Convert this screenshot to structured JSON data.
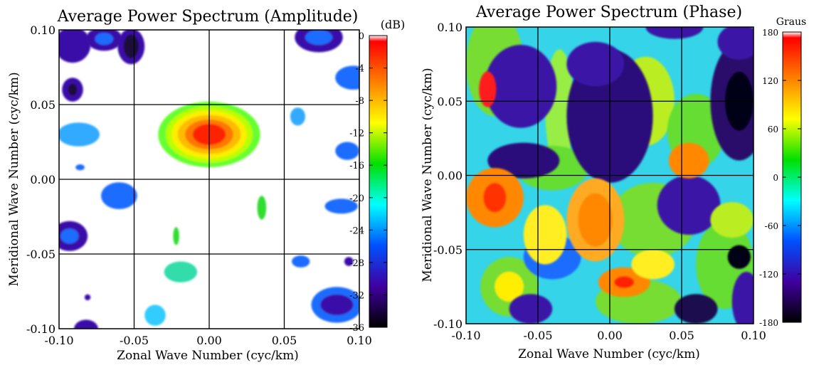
{
  "chart_data": [
    {
      "type": "heatmap",
      "title": "Average Power Spectrum (Amplitude)",
      "xlabel": "Zonal Wave Number (cyc/km)",
      "ylabel": "Meridional Wave Number (cyc/km)",
      "xlim": [
        -0.1,
        0.1
      ],
      "ylim": [
        -0.1,
        0.1
      ],
      "x_ticks": [
        "-0.10",
        "-0.05",
        "0.00",
        "0.05",
        "0.10"
      ],
      "y_ticks": [
        "-0.10",
        "-0.05",
        "0.00",
        "0.05",
        "0.10"
      ],
      "grid": true,
      "colorbar": {
        "label": "(dB)",
        "range": [
          -36,
          0
        ],
        "ticks": [
          "0",
          "-4",
          "-8",
          "-12",
          "-16",
          "-20",
          "-24",
          "-28",
          "-32",
          "-36"
        ],
        "colormap": "rainbow",
        "colors": [
          "#ffffff",
          "#ff0000",
          "#ff8000",
          "#ffff00",
          "#00e000",
          "#00ffff",
          "#0050ff",
          "#4000a0",
          "#000000"
        ]
      },
      "blobs": [
        {
          "x": 0.0,
          "y": 0.03,
          "peak_db": -2,
          "layers": [
            [
              0.034,
              0.022,
              "#66ff33"
            ],
            [
              0.029,
              0.019,
              "#bbff00"
            ],
            [
              0.025,
              0.016,
              "#ffee00"
            ],
            [
              0.021,
              0.013,
              "#ffbb00"
            ],
            [
              0.016,
              0.01,
              "#ff7700"
            ],
            [
              0.011,
              0.007,
              "#ff2200"
            ]
          ]
        },
        {
          "x": -0.091,
          "y": 0.09,
          "peak_db": -30,
          "layers": [
            [
              0.012,
              0.012,
              "#3a10a8"
            ]
          ]
        },
        {
          "x": -0.07,
          "y": 0.094,
          "peak_db": -30,
          "layers": [
            [
              0.012,
              0.008,
              "#3a10a8"
            ],
            [
              0.006,
              0.004,
              "#1e6cff"
            ]
          ]
        },
        {
          "x": -0.052,
          "y": 0.089,
          "peak_db": -34,
          "layers": [
            [
              0.009,
              0.012,
              "#3a10a8"
            ],
            [
              0.005,
              0.008,
              "#1a0a3a"
            ]
          ]
        },
        {
          "x": -0.091,
          "y": 0.06,
          "peak_db": -32,
          "layers": [
            [
              0.007,
              0.008,
              "#3a10a8"
            ],
            [
              0.003,
              0.004,
              "#1a0a3a"
            ]
          ]
        },
        {
          "x": 0.073,
          "y": 0.095,
          "peak_db": -30,
          "layers": [
            [
              0.016,
              0.01,
              "#3a10a8"
            ],
            [
              0.009,
              0.005,
              "#1e6cff"
            ]
          ]
        },
        {
          "x": 0.096,
          "y": 0.068,
          "peak_db": -28,
          "layers": [
            [
              0.012,
              0.008,
              "#1e6cff"
            ]
          ]
        },
        {
          "x": -0.087,
          "y": 0.03,
          "peak_db": -26,
          "layers": [
            [
              0.014,
              0.008,
              "#33aaff"
            ]
          ]
        },
        {
          "x": -0.086,
          "y": 0.008,
          "peak_db": -28,
          "layers": [
            [
              0.003,
              0.002,
              "#1e6cff"
            ]
          ]
        },
        {
          "x": 0.059,
          "y": 0.042,
          "peak_db": -26,
          "layers": [
            [
              0.005,
              0.006,
              "#33aaff"
            ]
          ]
        },
        {
          "x": 0.092,
          "y": 0.019,
          "peak_db": -28,
          "layers": [
            [
              0.008,
              0.006,
              "#1e6cff"
            ]
          ]
        },
        {
          "x": -0.06,
          "y": -0.011,
          "peak_db": -28,
          "layers": [
            [
              0.012,
              0.009,
              "#1e6cff"
            ]
          ]
        },
        {
          "x": 0.035,
          "y": -0.019,
          "peak_db": -20,
          "layers": [
            [
              0.003,
              0.008,
              "#33dd33"
            ]
          ]
        },
        {
          "x": 0.088,
          "y": -0.018,
          "peak_db": -28,
          "layers": [
            [
              0.011,
              0.005,
              "#1e6cff"
            ]
          ]
        },
        {
          "x": -0.022,
          "y": -0.038,
          "peak_db": -22,
          "layers": [
            [
              0.002,
              0.006,
              "#33dd33"
            ]
          ]
        },
        {
          "x": -0.093,
          "y": -0.038,
          "peak_db": -30,
          "layers": [
            [
              0.012,
              0.01,
              "#3a10a8"
            ],
            [
              0.006,
              0.005,
              "#1e6cff"
            ]
          ]
        },
        {
          "x": 0.061,
          "y": -0.055,
          "peak_db": -28,
          "layers": [
            [
              0.006,
              0.004,
              "#1e6cff"
            ]
          ]
        },
        {
          "x": 0.093,
          "y": -0.055,
          "peak_db": -30,
          "layers": [
            [
              0.003,
              0.003,
              "#3a10a8"
            ]
          ]
        },
        {
          "x": -0.019,
          "y": -0.062,
          "peak_db": -24,
          "layers": [
            [
              0.011,
              0.007,
              "#33ddaa"
            ]
          ]
        },
        {
          "x": 0.085,
          "y": -0.084,
          "peak_db": -30,
          "layers": [
            [
              0.017,
              0.012,
              "#1e6cff"
            ],
            [
              0.011,
              0.007,
              "#3a10a8"
            ]
          ]
        },
        {
          "x": -0.081,
          "y": -0.079,
          "peak_db": -34,
          "layers": [
            [
              0.002,
              0.002,
              "#3a10a8"
            ]
          ]
        },
        {
          "x": -0.036,
          "y": -0.091,
          "peak_db": -26,
          "layers": [
            [
              0.007,
              0.007,
              "#33ccff"
            ]
          ]
        },
        {
          "x": -0.082,
          "y": -0.1,
          "peak_db": -32,
          "layers": [
            [
              0.008,
              0.006,
              "#3a10a8"
            ]
          ]
        }
      ]
    },
    {
      "type": "heatmap",
      "title": "Average Power Spectrum (Phase)",
      "xlabel": "Zonal Wave Number (cyc/km)",
      "ylabel": "Meridional Wave Number (cyc/km)",
      "xlim": [
        -0.1,
        0.1
      ],
      "ylim": [
        -0.1,
        0.1
      ],
      "x_ticks": [
        "-0.10",
        "-0.05",
        "0.00",
        "0.05",
        "0.10"
      ],
      "y_ticks": [
        "-0.10",
        "-0.05",
        "0.00",
        "0.05",
        "0.10"
      ],
      "grid": true,
      "colorbar": {
        "label": "Graus",
        "range": [
          -180,
          180
        ],
        "ticks": [
          "180",
          "120",
          "60",
          "0",
          "-60",
          "-120",
          "-180"
        ],
        "colormap": "rainbow",
        "colors": [
          "#ffffff",
          "#ff0000",
          "#ff8000",
          "#ffff00",
          "#00e000",
          "#00ffff",
          "#0050ff",
          "#4000a0",
          "#000000"
        ]
      },
      "background_color": "#35d4e8",
      "blobs": [
        {
          "x": -0.08,
          "y": 0.075,
          "peak_deg": 20,
          "layers": [
            [
              0.02,
              0.035,
              "#77dd33"
            ]
          ]
        },
        {
          "x": -0.035,
          "y": 0.045,
          "peak_deg": 20,
          "layers": [
            [
              0.01,
              0.04,
              "#99ee44"
            ]
          ]
        },
        {
          "x": 0.025,
          "y": 0.05,
          "peak_deg": 40,
          "layers": [
            [
              0.02,
              0.03,
              "#bbee22"
            ]
          ]
        },
        {
          "x": 0.06,
          "y": 0.03,
          "peak_deg": 20,
          "layers": [
            [
              0.02,
              0.025,
              "#66dd33"
            ]
          ]
        },
        {
          "x": -0.04,
          "y": 0.005,
          "peak_deg": 20,
          "layers": [
            [
              0.025,
              0.015,
              "#66dd33"
            ]
          ]
        },
        {
          "x": 0.03,
          "y": -0.03,
          "peak_deg": 20,
          "layers": [
            [
              0.03,
              0.025,
              "#77dd33"
            ]
          ]
        },
        {
          "x": 0.08,
          "y": -0.06,
          "peak_deg": 20,
          "layers": [
            [
              0.02,
              0.03,
              "#66dd33"
            ]
          ]
        },
        {
          "x": -0.07,
          "y": -0.075,
          "peak_deg": 60,
          "layers": [
            [
              0.02,
              0.02,
              "#77dd33"
            ],
            [
              0.01,
              0.01,
              "#ffee00"
            ]
          ]
        },
        {
          "x": 0.02,
          "y": -0.085,
          "peak_deg": 20,
          "layers": [
            [
              0.03,
              0.015,
              "#77dd33"
            ]
          ]
        },
        {
          "x": -0.062,
          "y": 0.06,
          "peak_deg": -140,
          "layers": [
            [
              0.025,
              0.028,
              "#3a12a6"
            ]
          ]
        },
        {
          "x": 0.0,
          "y": 0.04,
          "peak_deg": -160,
          "layers": [
            [
              0.03,
              0.045,
              "#2a0e7a"
            ]
          ]
        },
        {
          "x": -0.01,
          "y": 0.075,
          "peak_deg": -140,
          "layers": [
            [
              0.02,
              0.015,
              "#3a12a6"
            ]
          ]
        },
        {
          "x": 0.09,
          "y": 0.05,
          "peak_deg": -170,
          "layers": [
            [
              0.02,
              0.04,
              "#2a0e6a"
            ],
            [
              0.01,
              0.02,
              "#050314"
            ]
          ]
        },
        {
          "x": 0.09,
          "y": 0.09,
          "peak_deg": -140,
          "layers": [
            [
              0.015,
              0.012,
              "#3a12a6"
            ]
          ]
        },
        {
          "x": 0.045,
          "y": 0.1,
          "peak_deg": -140,
          "layers": [
            [
              0.02,
              0.008,
              "#3a12a6"
            ]
          ]
        },
        {
          "x": -0.06,
          "y": 0.01,
          "peak_deg": -170,
          "layers": [
            [
              0.025,
              0.012,
              "#2a0e7a"
            ]
          ]
        },
        {
          "x": 0.055,
          "y": -0.02,
          "peak_deg": -140,
          "layers": [
            [
              0.022,
              0.02,
              "#3a12a6"
            ]
          ]
        },
        {
          "x": -0.04,
          "y": -0.055,
          "peak_deg": -120,
          "layers": [
            [
              0.02,
              0.015,
              "#1e6cff"
            ]
          ]
        },
        {
          "x": -0.055,
          "y": -0.09,
          "peak_deg": -140,
          "layers": [
            [
              0.015,
              0.01,
              "#3a12a6"
            ]
          ]
        },
        {
          "x": 0.06,
          "y": -0.09,
          "peak_deg": -170,
          "layers": [
            [
              0.015,
              0.01,
              "#1e1050"
            ]
          ]
        },
        {
          "x": 0.095,
          "y": -0.085,
          "peak_deg": -140,
          "layers": [
            [
              0.01,
              0.02,
              "#3a12a6"
            ]
          ]
        },
        {
          "x": 0.09,
          "y": -0.055,
          "peak_deg": -170,
          "layers": [
            [
              0.008,
              0.008,
              "#050314"
            ]
          ]
        },
        {
          "x": -0.08,
          "y": -0.015,
          "peak_deg": 120,
          "layers": [
            [
              0.02,
              0.02,
              "#ff8800"
            ],
            [
              0.008,
              0.01,
              "#ff3300"
            ]
          ]
        },
        {
          "x": -0.01,
          "y": -0.03,
          "peak_deg": 120,
          "layers": [
            [
              0.02,
              0.028,
              "#ffaa22"
            ],
            [
              0.012,
              0.018,
              "#ff8800"
            ]
          ]
        },
        {
          "x": 0.055,
          "y": 0.01,
          "peak_deg": 120,
          "layers": [
            [
              0.014,
              0.012,
              "#ff8800"
            ]
          ]
        },
        {
          "x": 0.01,
          "y": -0.072,
          "peak_deg": 120,
          "layers": [
            [
              0.018,
              0.01,
              "#ff8800"
            ],
            [
              0.007,
              0.004,
              "#ff2200"
            ]
          ]
        },
        {
          "x": 0.03,
          "y": -0.06,
          "peak_deg": 60,
          "layers": [
            [
              0.015,
              0.01,
              "#ffee22"
            ]
          ]
        },
        {
          "x": -0.085,
          "y": 0.058,
          "peak_deg": 170,
          "layers": [
            [
              0.006,
              0.012,
              "#ff1a1a"
            ]
          ]
        },
        {
          "x": -0.045,
          "y": -0.04,
          "peak_deg": 60,
          "layers": [
            [
              0.015,
              0.02,
              "#ffee22"
            ]
          ]
        },
        {
          "x": 0.085,
          "y": -0.03,
          "peak_deg": 40,
          "layers": [
            [
              0.015,
              0.012,
              "#bbee22"
            ]
          ]
        }
      ]
    }
  ]
}
